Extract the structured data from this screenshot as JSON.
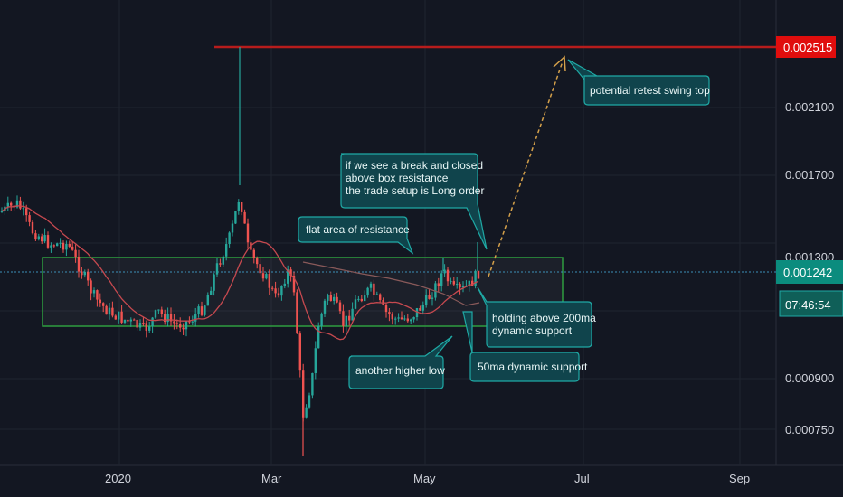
{
  "chart_data": {
    "type": "candlestick",
    "price_axis": {
      "ticks": [
        "0.002100",
        "0.001700",
        "0.001300",
        "0.000900",
        "0.000750"
      ],
      "current_price": "0.001242",
      "countdown": "07:46:54",
      "target_price": "0.002515"
    },
    "time_axis": {
      "ticks": [
        "2020",
        "Mar",
        "May",
        "Jul",
        "Sep"
      ]
    },
    "resistance_line": 0.002515,
    "box": {
      "top": 0.0013,
      "bottom": 0.00109
    },
    "annotations": {
      "retest": "potential retest swing top",
      "breakout": [
        "if we see a break and closed",
        "above box resistance",
        "the trade setup is Long order"
      ],
      "flat_area": "flat area of resistance",
      "holding": [
        "holding above 200ma",
        "dynamic support"
      ],
      "higher_low": "another higher low",
      "ma50": "50ma dynamic support"
    },
    "colors": {
      "up": "#26a69a",
      "down": "#ef5350",
      "box": "#2e9e3f",
      "resistance": "#b71c1c",
      "ma": "#c6494f",
      "callout_fill": "#10444c",
      "callout_border": "#1fa9a5",
      "arrow": "#d4a04a",
      "price_line": "#3b8fb8"
    }
  }
}
